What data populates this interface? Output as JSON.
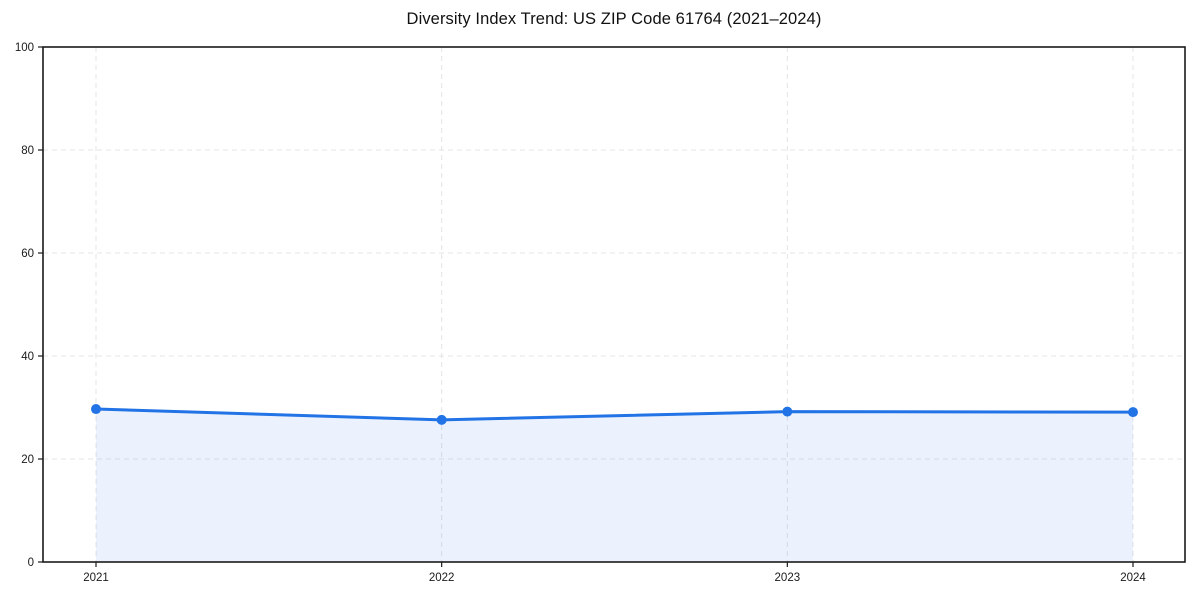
{
  "chart_data": {
    "type": "line",
    "title": "Diversity Index Trend: US ZIP Code 61764 (2021–2024)",
    "series_name": "Diversity Index",
    "categories": [
      "2021",
      "2022",
      "2023",
      "2024"
    ],
    "x": [
      2021,
      2022,
      2023,
      2024
    ],
    "values": [
      29.7,
      27.6,
      29.2,
      29.1
    ],
    "xlabel": "",
    "ylabel": "",
    "ylim": [
      0,
      100
    ],
    "yticks": [
      0,
      20,
      40,
      60,
      80,
      100
    ],
    "xtick_labels": [
      "2021",
      "2022",
      "2023",
      "2024"
    ],
    "grid": true,
    "grid_style": "dashed",
    "legend_position": "none",
    "colors": {
      "line": "#2273e6",
      "marker": "#2273e6",
      "area_fill": "rgba(34,115,230,0.09)",
      "gridline": "#e4e4e4",
      "spine": "#1a1a1a",
      "tick_text": "#1a1a1a",
      "background": "#ffffff"
    },
    "style": {
      "line_width": 3,
      "marker_radius": 5,
      "fill_under": true
    }
  }
}
